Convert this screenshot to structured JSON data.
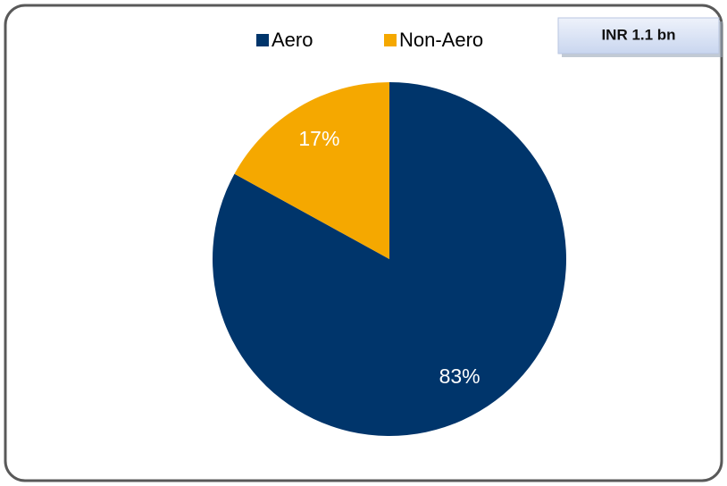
{
  "chart_data": {
    "type": "pie",
    "categories": [
      "Aero",
      "Non-Aero"
    ],
    "values": [
      83,
      17
    ],
    "value_labels": [
      "83%",
      "17%"
    ],
    "colors": [
      "#00356b",
      "#f5a800"
    ],
    "annotation": "INR 1.1 bn",
    "legend": "top"
  }
}
